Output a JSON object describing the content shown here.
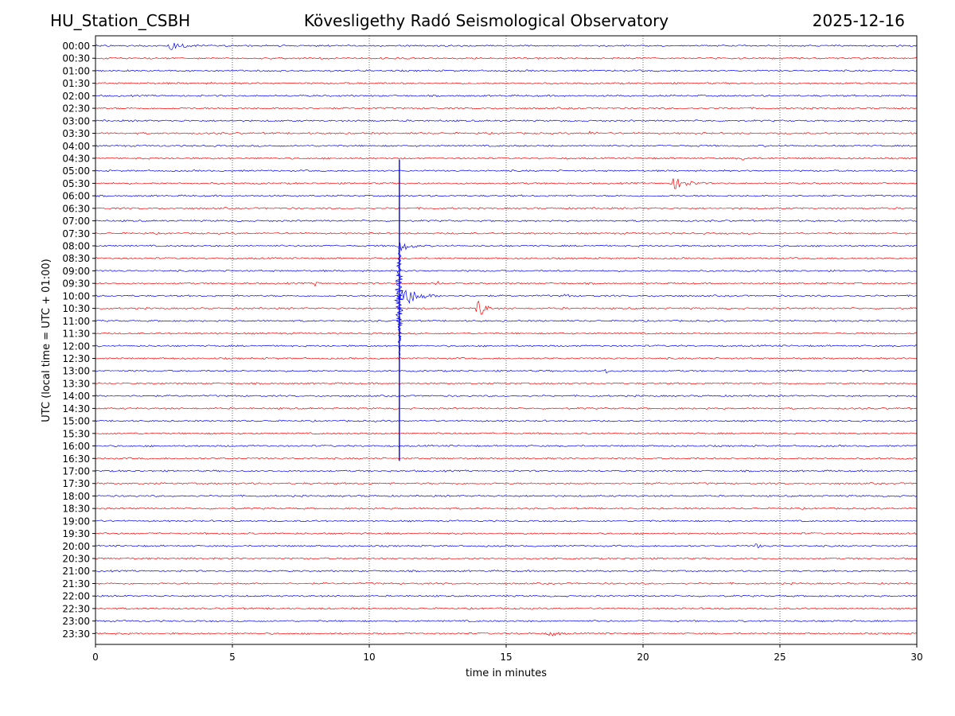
{
  "header": {
    "station": "HU_Station_CSBH",
    "observatory": "Kövesligethy Radó Seismological Observatory",
    "date": "2025-12-16"
  },
  "chart_data": {
    "type": "line",
    "title": "Kövesligethy Radó Seismological Observatory",
    "subtitle_left": "HU_Station_CSBH",
    "subtitle_right": "2025-12-16",
    "xlabel": "time in minutes",
    "ylabel": "UTC (local time = UTC + 01:00)",
    "xlim": [
      0,
      30
    ],
    "x_ticks": [
      0,
      5,
      10,
      15,
      20,
      25,
      30
    ],
    "grid": "vertical dotted at x ticks",
    "colors": {
      "even_rows": "#0000ff",
      "odd_rows": "#ff0000"
    },
    "row_labels": [
      "00:00",
      "00:30",
      "01:00",
      "01:30",
      "02:00",
      "02:30",
      "03:00",
      "03:30",
      "04:00",
      "04:30",
      "05:00",
      "05:30",
      "06:00",
      "06:30",
      "07:00",
      "07:30",
      "08:00",
      "08:30",
      "09:00",
      "09:30",
      "10:00",
      "10:30",
      "11:00",
      "11:30",
      "12:00",
      "12:30",
      "13:00",
      "13:30",
      "14:00",
      "14:30",
      "15:00",
      "15:30",
      "16:00",
      "16:30",
      "17:00",
      "17:30",
      "18:00",
      "18:30",
      "19:00",
      "19:30",
      "20:00",
      "20:30",
      "21:00",
      "21:30",
      "22:00",
      "22:30",
      "23:00",
      "23:30"
    ],
    "noise_amplitude_rows": 0.08,
    "events": [
      {
        "row": "00:00",
        "start_min": 2.6,
        "duration_min": 1.8,
        "amp_rows": 0.45
      },
      {
        "row": "03:30",
        "start_min": 18.0,
        "duration_min": 1.0,
        "amp_rows": 0.25
      },
      {
        "row": "04:30",
        "start_min": 23.6,
        "duration_min": 0.8,
        "amp_rows": 0.3
      },
      {
        "row": "05:30",
        "start_min": 21.0,
        "duration_min": 2.0,
        "amp_rows": 0.6
      },
      {
        "row": "08:00",
        "start_min": 11.0,
        "duration_min": 1.3,
        "amp_rows": 0.7
      },
      {
        "row": "09:30",
        "start_min": 8.0,
        "duration_min": 0.4,
        "amp_rows": 0.35
      },
      {
        "row": "09:30",
        "start_min": 12.4,
        "duration_min": 0.6,
        "amp_rows": 0.3
      },
      {
        "row": "10:00",
        "start_min": 11.1,
        "duration_min": 1.6,
        "amp_rows": 1.3
      },
      {
        "row": "10:00",
        "start_min": 17.1,
        "duration_min": 0.8,
        "amp_rows": 0.3
      },
      {
        "row": "10:30",
        "start_min": 13.9,
        "duration_min": 0.7,
        "amp_rows": 1.4
      },
      {
        "row": "13:00",
        "start_min": 18.6,
        "duration_min": 0.3,
        "amp_rows": 0.5
      },
      {
        "row": "20:00",
        "start_min": 24.1,
        "duration_min": 0.4,
        "amp_rows": 0.45
      },
      {
        "row": "22:30",
        "start_min": 8.2,
        "duration_min": 0.3,
        "amp_rows": 0.3
      },
      {
        "row": "23:30",
        "start_min": 16.5,
        "duration_min": 1.3,
        "amp_rows": 0.35
      }
    ],
    "large_event": {
      "minute": 11.1,
      "first_row": "05:00",
      "last_row": "16:30",
      "peak_row": "10:00",
      "note": "teleseismic-style arrival visible as a near-vertical trace spanning many rows"
    }
  }
}
